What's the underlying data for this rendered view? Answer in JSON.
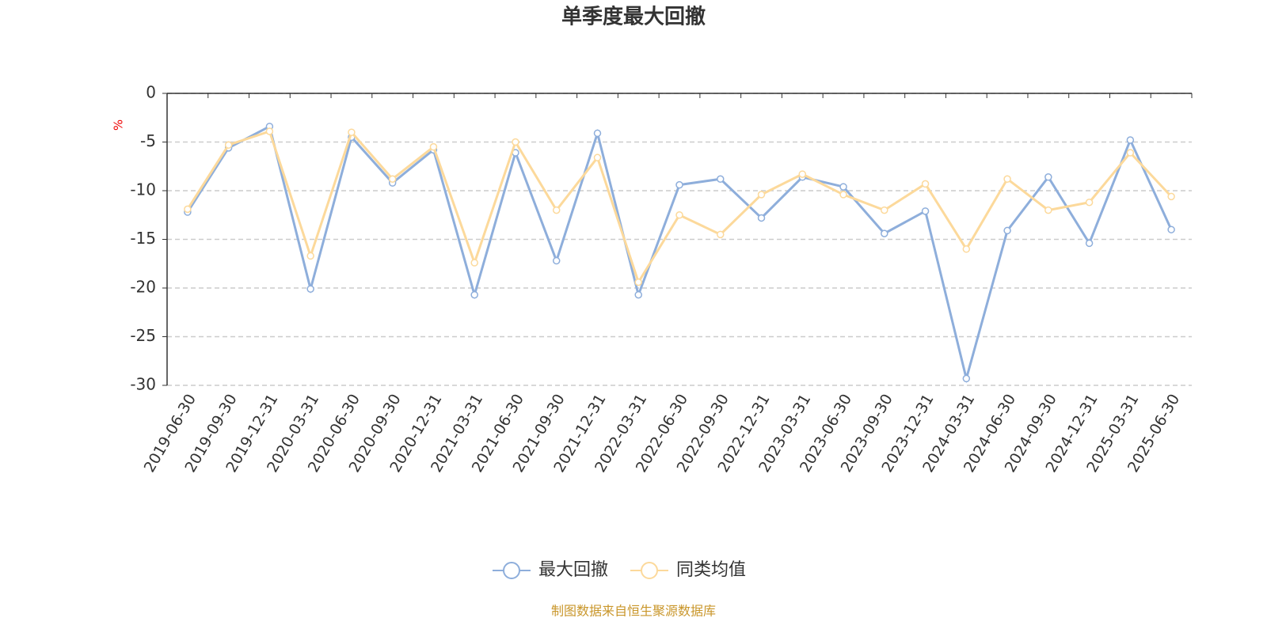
{
  "chart_data": {
    "type": "line",
    "title": "单季度最大回撤",
    "y_label": "%",
    "source": "制图数据来自恒生聚源数据库",
    "categories": [
      "2019-06-30",
      "2019-09-30",
      "2019-12-31",
      "2020-03-31",
      "2020-06-30",
      "2020-09-30",
      "2020-12-31",
      "2021-03-31",
      "2021-06-30",
      "2021-09-30",
      "2021-12-31",
      "2022-03-31",
      "2022-06-30",
      "2022-09-30",
      "2022-12-31",
      "2023-03-31",
      "2023-06-30",
      "2023-09-30",
      "2023-12-31",
      "2024-03-31",
      "2024-06-30",
      "2024-09-30",
      "2024-12-31",
      "2025-03-31",
      "2025-06-30"
    ],
    "series": [
      {
        "name": "最大回撤",
        "color": "#8eaedb",
        "values": [
          -12.2,
          -5.6,
          -3.4,
          -20.1,
          -4.5,
          -9.2,
          -5.8,
          -20.7,
          -6.1,
          -17.2,
          -4.1,
          -20.7,
          -9.4,
          -8.8,
          -12.8,
          -8.6,
          -9.6,
          -14.4,
          -12.1,
          -29.3,
          -14.1,
          -8.6,
          -15.4,
          -4.8,
          -14.0
        ]
      },
      {
        "name": "同类均值",
        "color": "#fcd99b",
        "values": [
          -11.9,
          -5.3,
          -3.9,
          -16.7,
          -4.0,
          -8.8,
          -5.5,
          -17.4,
          -5.0,
          -12.0,
          -6.6,
          -19.4,
          -12.5,
          -14.5,
          -10.4,
          -8.3,
          -10.4,
          -12.0,
          -9.3,
          -16.0,
          -8.8,
          -12.0,
          -11.2,
          -6.1,
          -10.6
        ]
      }
    ],
    "ylim": [
      -30,
      0
    ],
    "yticks": [
      0,
      -5,
      -10,
      -15,
      -20,
      -25,
      -30
    ],
    "grid": true,
    "legend": "bottom"
  }
}
